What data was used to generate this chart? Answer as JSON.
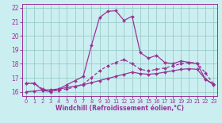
{
  "xlabel": "Windchill (Refroidissement éolien,°C)",
  "xlim": [
    -0.5,
    23.5
  ],
  "ylim": [
    15.7,
    22.3
  ],
  "yticks": [
    16,
    17,
    18,
    19,
    20,
    21,
    22
  ],
  "xticks": [
    0,
    1,
    2,
    3,
    4,
    5,
    6,
    7,
    8,
    9,
    10,
    11,
    12,
    13,
    14,
    15,
    16,
    17,
    18,
    19,
    20,
    21,
    22,
    23
  ],
  "bg_color": "#cbeef0",
  "line_color": "#993399",
  "grid_color": "#99cccc",
  "line1_x": [
    0,
    1,
    2,
    3,
    4,
    5,
    6,
    7,
    8,
    9,
    10,
    11,
    12,
    13,
    14,
    15,
    16,
    17,
    18,
    19,
    20,
    21,
    22,
    23
  ],
  "line1_y": [
    16.6,
    16.6,
    16.1,
    16.0,
    16.2,
    16.5,
    16.8,
    17.1,
    19.3,
    21.3,
    21.75,
    21.8,
    21.1,
    21.4,
    18.8,
    18.4,
    18.6,
    18.1,
    18.0,
    18.2,
    18.1,
    18.0,
    16.9,
    16.5
  ],
  "line2_x": [
    0,
    1,
    2,
    3,
    4,
    5,
    6,
    7,
    8,
    9,
    10,
    11,
    12,
    13,
    14,
    15,
    16,
    17,
    18,
    19,
    20,
    21,
    22,
    23
  ],
  "line2_y": [
    16.6,
    16.6,
    16.2,
    16.05,
    16.1,
    16.2,
    16.35,
    16.55,
    17.0,
    17.5,
    17.85,
    18.1,
    18.3,
    18.0,
    17.6,
    17.5,
    17.6,
    17.7,
    17.85,
    18.0,
    18.1,
    18.05,
    17.35,
    16.55
  ],
  "line3_x": [
    0,
    1,
    2,
    3,
    4,
    5,
    6,
    7,
    8,
    9,
    10,
    11,
    12,
    13,
    14,
    15,
    16,
    17,
    18,
    19,
    20,
    21,
    22,
    23
  ],
  "line3_y": [
    16.0,
    16.05,
    16.1,
    16.15,
    16.2,
    16.3,
    16.4,
    16.5,
    16.65,
    16.8,
    16.95,
    17.1,
    17.25,
    17.4,
    17.3,
    17.25,
    17.3,
    17.4,
    17.5,
    17.6,
    17.65,
    17.6,
    16.9,
    16.55
  ]
}
